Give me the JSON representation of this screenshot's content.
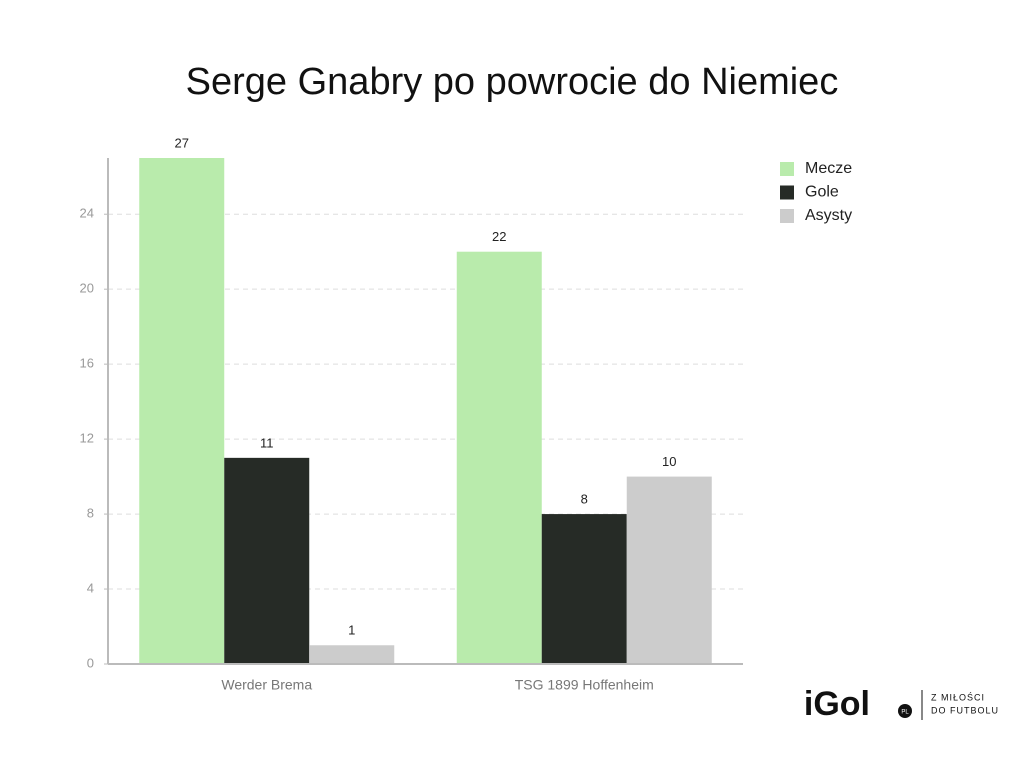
{
  "chart_data": {
    "type": "bar",
    "title": "Serge Gnabry po powrocie do Niemiec",
    "categories": [
      "Werder Brema",
      "TSG 1899 Hoffenheim"
    ],
    "series": [
      {
        "name": "Mecze",
        "color": "#b9ebac",
        "values": [
          27,
          22
        ]
      },
      {
        "name": "Gole",
        "color": "#262b26",
        "values": [
          11,
          8
        ]
      },
      {
        "name": "Asysty",
        "color": "#cccccc",
        "values": [
          1,
          10
        ]
      }
    ],
    "ylim": [
      0,
      27
    ],
    "yticks": [
      0,
      4,
      8,
      12,
      16,
      20,
      24
    ],
    "grid": true,
    "legend": "right"
  },
  "branding": {
    "logo": "iGol",
    "badge": "PL",
    "tagline": [
      "Z MIŁOŚCI",
      "DO FUTBOLU"
    ]
  }
}
